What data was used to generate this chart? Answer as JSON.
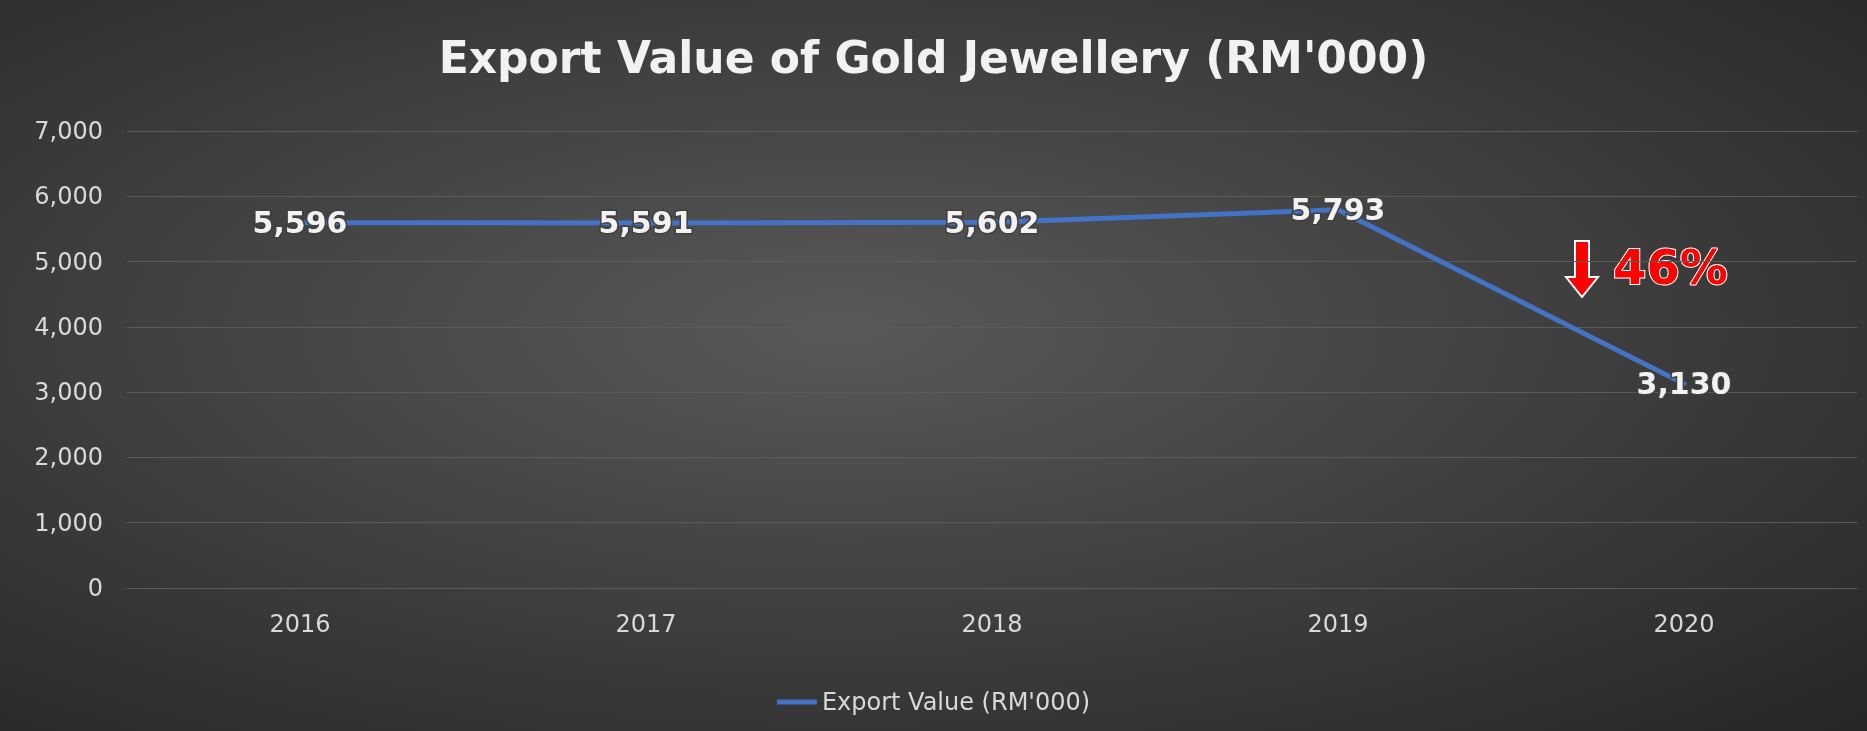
{
  "chart_data": {
    "type": "line",
    "title": "Export Value of Gold Jewellery (RM'000)",
    "categories": [
      "2016",
      "2017",
      "2018",
      "2019",
      "2020"
    ],
    "series": [
      {
        "name": "Export Value (RM'000)",
        "color": "#4472c4",
        "values": [
          5596,
          5591,
          5602,
          5793,
          3130
        ],
        "value_labels": [
          "5,596",
          "5,591",
          "5,602",
          "5,793",
          "3,130"
        ]
      }
    ],
    "ylim": [
      0,
      7000
    ],
    "yticks": [
      {
        "value": 0,
        "label": "0"
      },
      {
        "value": 1000,
        "label": "1,000"
      },
      {
        "value": 2000,
        "label": "2,000"
      },
      {
        "value": 3000,
        "label": "3,000"
      },
      {
        "value": 4000,
        "label": "4,000"
      },
      {
        "value": 5000,
        "label": "5,000"
      },
      {
        "value": 6000,
        "label": "6,000"
      },
      {
        "value": 7000,
        "label": "7,000"
      }
    ],
    "grid": "y",
    "legend": "bottom",
    "marker": "none",
    "line_style": "solid",
    "annotations": [
      "46%"
    ]
  }
}
